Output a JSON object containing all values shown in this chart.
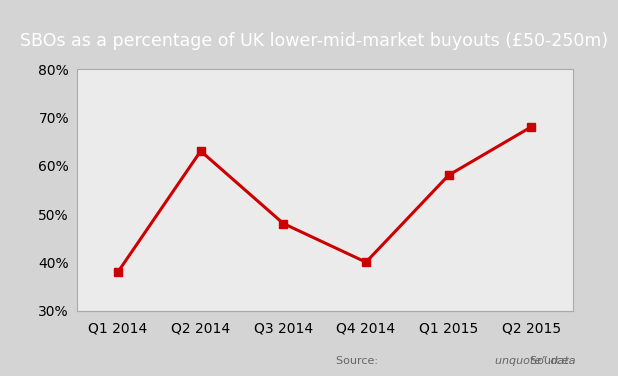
{
  "title": "SBOs as a percentage of UK lower-mid-market buyouts (£50-250m)",
  "categories": [
    "Q1 2014",
    "Q2 2014",
    "Q3 2014",
    "Q4 2014",
    "Q1 2015",
    "Q2 2015"
  ],
  "values": [
    38,
    63,
    48,
    40,
    58,
    68
  ],
  "line_color": "#cc0000",
  "marker": "s",
  "marker_size": 6,
  "line_width": 2.2,
  "ylim": [
    30,
    80
  ],
  "yticks": [
    30,
    40,
    50,
    60,
    70,
    80
  ],
  "title_bg_color": "#8c8c8c",
  "plot_bg_color": "#ebebeb",
  "outer_bg_color": "#d4d4d4",
  "title_fontsize": 12.5,
  "tick_fontsize": 10,
  "source_text": "Source: ",
  "source_italic": "unquote” data"
}
